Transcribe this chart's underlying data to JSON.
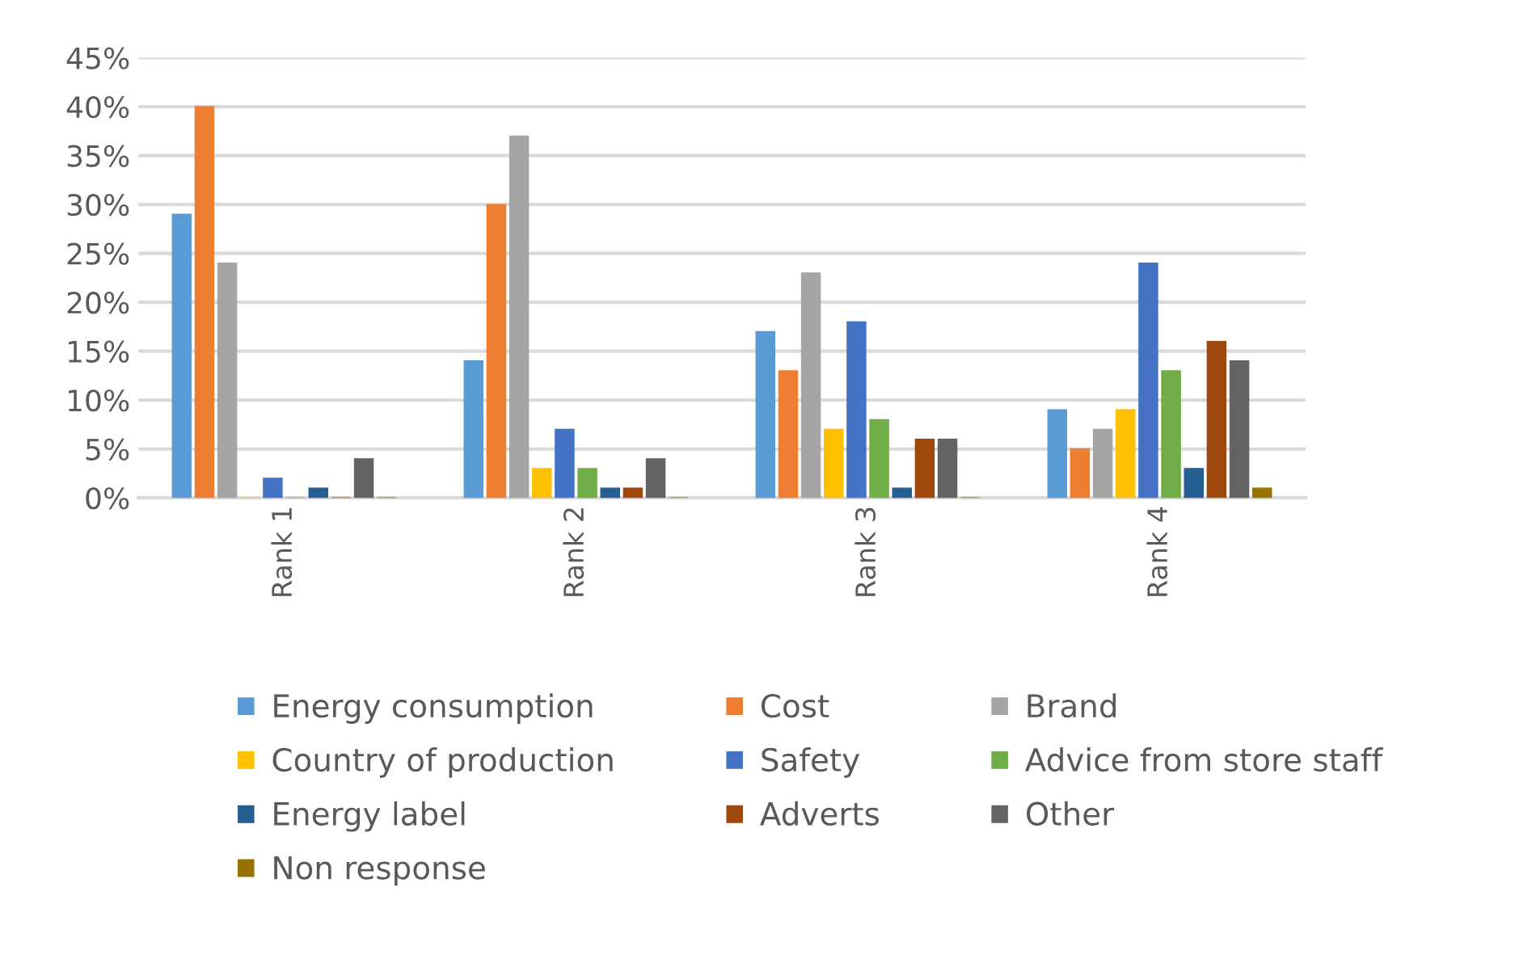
{
  "chart_data": {
    "type": "bar",
    "categories": [
      "Rank 1",
      "Rank 2",
      "Rank 3",
      "Rank 4"
    ],
    "series": [
      {
        "name": "Energy consumption",
        "color": "#5b9bd5",
        "values": [
          29,
          14,
          17,
          9
        ]
      },
      {
        "name": "Cost",
        "color": "#ed7d31",
        "values": [
          40,
          30,
          13,
          5
        ]
      },
      {
        "name": "Brand",
        "color": "#a5a5a5",
        "values": [
          24,
          37,
          23,
          7
        ]
      },
      {
        "name": "Country of production",
        "color": "#ffc000",
        "values": [
          0,
          3,
          7,
          9
        ]
      },
      {
        "name": "Safety",
        "color": "#4472c4",
        "values": [
          2,
          7,
          18,
          24
        ]
      },
      {
        "name": "Advice from store staff",
        "color": "#70ad47",
        "values": [
          0,
          3,
          8,
          13
        ]
      },
      {
        "name": "Energy label",
        "color": "#255e91",
        "values": [
          1,
          1,
          1,
          3
        ]
      },
      {
        "name": "Adverts",
        "color": "#9e480e",
        "values": [
          0,
          1,
          6,
          16
        ]
      },
      {
        "name": "Other",
        "color": "#636363",
        "values": [
          4,
          4,
          6,
          14
        ]
      },
      {
        "name": "Non response",
        "color": "#997300",
        "values": [
          0,
          0,
          0,
          1
        ]
      }
    ],
    "ylim": [
      0,
      45
    ],
    "yticks": [
      {
        "value": 0,
        "label": "0%"
      },
      {
        "value": 5,
        "label": "5%"
      },
      {
        "value": 10,
        "label": "10%"
      },
      {
        "value": 15,
        "label": "15%"
      },
      {
        "value": 20,
        "label": "20%"
      },
      {
        "value": 25,
        "label": "25%"
      },
      {
        "value": 30,
        "label": "30%"
      },
      {
        "value": 35,
        "label": "35%"
      },
      {
        "value": 40,
        "label": "40%"
      },
      {
        "value": 45,
        "label": "45%"
      }
    ],
    "grid": "y",
    "legend": "bottom"
  }
}
